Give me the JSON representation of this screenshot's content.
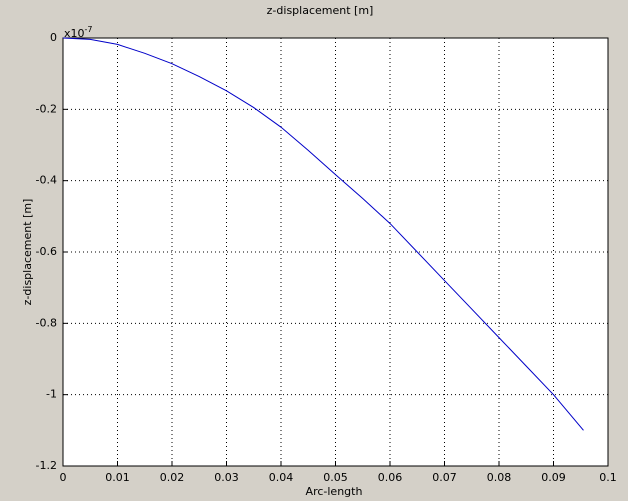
{
  "chart_data": {
    "type": "line",
    "title": "z-displacement [m]",
    "x_label": "Arc-length",
    "y_label": "z-displacement [m]",
    "y_scale_label": "x10",
    "y_scale_exponent": "-7",
    "x": [
      0,
      0.005,
      0.01,
      0.015,
      0.02,
      0.025,
      0.03,
      0.035,
      0.04,
      0.045,
      0.05,
      0.055,
      0.06,
      0.065,
      0.07,
      0.075,
      0.08,
      0.085,
      0.09,
      0.0955
    ],
    "values": [
      0,
      -0.004,
      -0.018,
      -0.043,
      -0.072,
      -0.108,
      -0.148,
      -0.195,
      -0.25,
      -0.315,
      -0.383,
      -0.45,
      -0.52,
      -0.6,
      -0.68,
      -0.76,
      -0.84,
      -0.92,
      -1.0,
      -1.1
    ],
    "color": "#0000c8",
    "xlim": [
      0,
      0.1
    ],
    "xticks": [
      0,
      0.01,
      0.02,
      0.03,
      0.04,
      0.05,
      0.06,
      0.07,
      0.08,
      0.09,
      0.1
    ],
    "ylim": [
      -1.2,
      0
    ],
    "yticks": [
      -1.2,
      -1,
      -0.8,
      -0.6,
      -0.4,
      -0.2,
      0
    ],
    "grid": true
  }
}
